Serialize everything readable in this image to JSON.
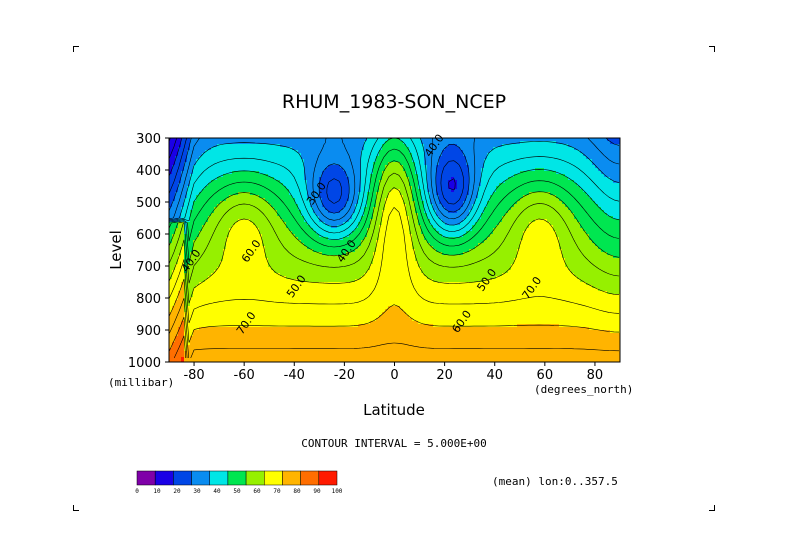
{
  "chart_data": {
    "type": "heatmap",
    "title": "RHUM_1983-SON_NCEP",
    "xlabel": "Latitude",
    "xunit": "(degrees_north)",
    "ylabel": "Level",
    "yunit": "(millibar)",
    "xlim": [
      -90,
      90
    ],
    "ylim": [
      1000,
      300
    ],
    "xticks": [
      -80,
      -60,
      -40,
      -20,
      0,
      20,
      40,
      60,
      80
    ],
    "xtick_labels": [
      "-80",
      "-60",
      "-40",
      "-20",
      "0",
      "20",
      "40",
      "60",
      "80"
    ],
    "yticks": [
      300,
      400,
      500,
      600,
      700,
      800,
      900,
      1000
    ],
    "ytick_labels": [
      "300",
      "400",
      "500",
      "600",
      "700",
      "800",
      "900",
      "1000"
    ],
    "contour_interval_text": "CONTOUR INTERVAL = 5.000E+00",
    "mean_note": "(mean) lon:0..357.5",
    "colorbar": {
      "labels": [
        "0",
        "10",
        "20",
        "30",
        "40",
        "50",
        "60",
        "70",
        "80",
        "90",
        "100"
      ],
      "colors": [
        "#7f00a8",
        "#1a00e6",
        "#0046e6",
        "#0a8cf0",
        "#00e6e6",
        "#00e650",
        "#96f000",
        "#ffff00",
        "#ffb400",
        "#ff6e00",
        "#ff1a00"
      ]
    },
    "contour_labels": [
      {
        "text": "40.0",
        "x": 17,
        "y": 330
      },
      {
        "text": "30.0",
        "x": -30,
        "y": 480
      },
      {
        "text": "40.0",
        "x": -80,
        "y": 690
      },
      {
        "text": "40.0",
        "x": -18,
        "y": 660
      },
      {
        "text": "60.0",
        "x": -56,
        "y": 660
      },
      {
        "text": "50.0",
        "x": -38,
        "y": 770
      },
      {
        "text": "50.0",
        "x": 38,
        "y": 750
      },
      {
        "text": "70.0",
        "x": 56,
        "y": 775
      },
      {
        "text": "70.0",
        "x": -58,
        "y": 885
      },
      {
        "text": "60.0",
        "x": 28,
        "y": 880
      }
    ],
    "grid": false,
    "legend_position": "bottom-left"
  }
}
